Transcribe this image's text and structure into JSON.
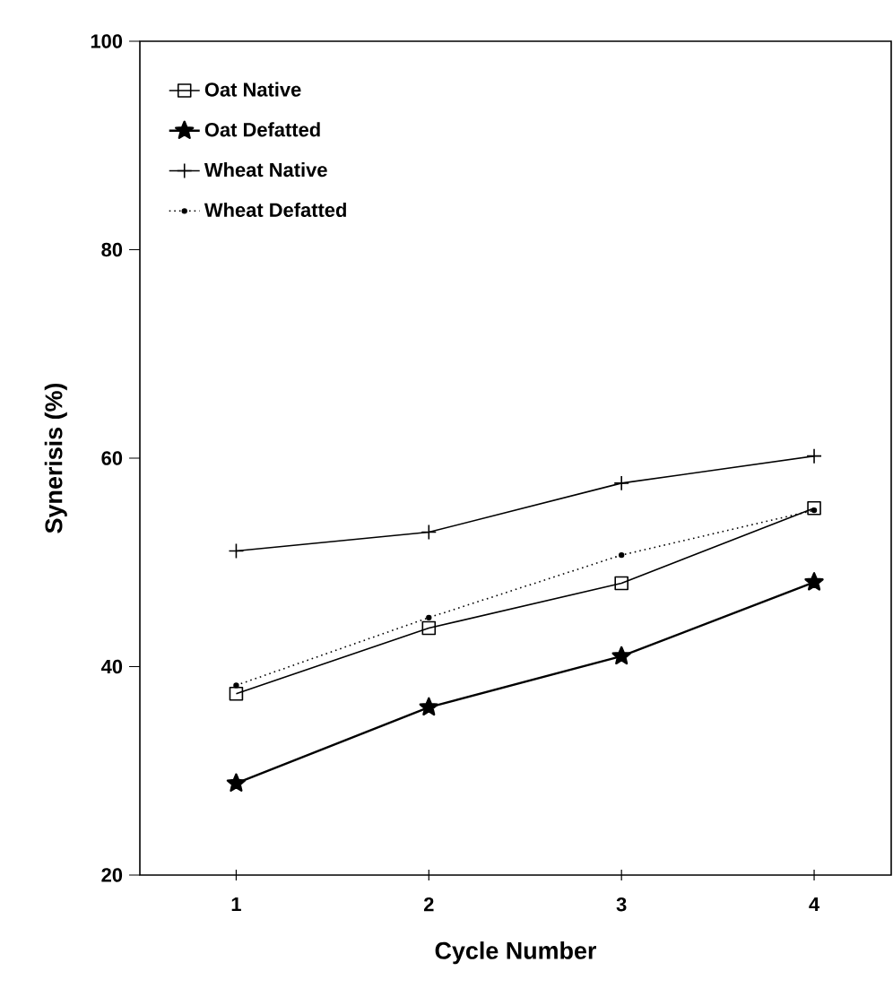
{
  "chart_data": {
    "type": "line",
    "xlabel": "Cycle Number",
    "ylabel": "Synerisis (%)",
    "x": [
      1,
      2,
      3,
      4
    ],
    "xlim": [
      0.5,
      4.4
    ],
    "xticks": [
      1,
      2,
      3,
      4
    ],
    "ylim": [
      20,
      100
    ],
    "yticks": [
      20,
      40,
      60,
      80,
      100
    ],
    "legend": "top left",
    "grid": false,
    "series": [
      {
        "name": "Oat Native",
        "color": "#000000",
        "marker": "square",
        "line_style": "solid",
        "values": [
          37.4,
          43.7,
          48.0,
          55.2
        ]
      },
      {
        "name": "Oat Defatted",
        "color": "#000000",
        "marker": "star",
        "line_style": "solid",
        "values": [
          28.8,
          36.1,
          41.0,
          48.1
        ]
      },
      {
        "name": "Wheat Native",
        "color": "#000000",
        "marker": "cross",
        "line_style": "solid",
        "values": [
          51.1,
          52.9,
          57.6,
          60.2
        ]
      },
      {
        "name": "Wheat Defatted",
        "color": "#000000",
        "marker": "circle",
        "line_style": "dotted",
        "values": [
          38.2,
          44.7,
          50.7,
          55.0
        ]
      }
    ]
  }
}
